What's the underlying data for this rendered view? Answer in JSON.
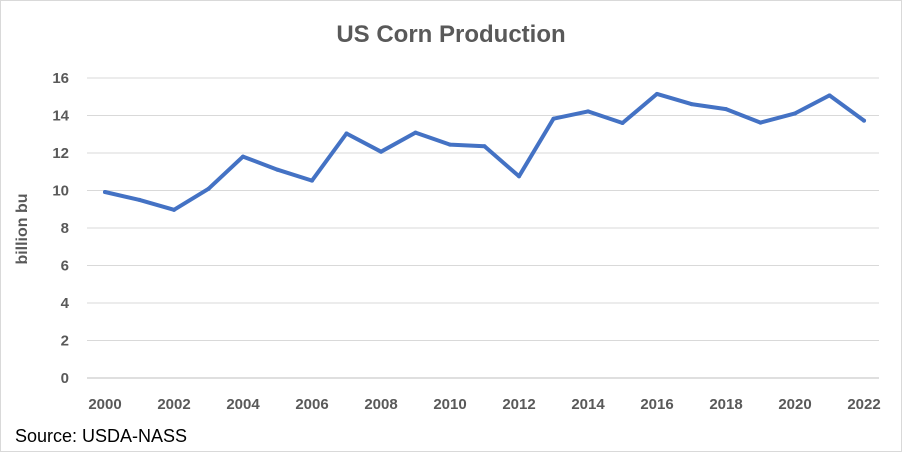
{
  "source": "Source: USDA-NASS",
  "chart_data": {
    "type": "line",
    "title": "US Corn Production",
    "xlabel": "",
    "ylabel": "billion bu",
    "xlim": [
      2000,
      2022
    ],
    "ylim": [
      0,
      16
    ],
    "x_ticks": [
      2000,
      2002,
      2004,
      2006,
      2008,
      2010,
      2012,
      2014,
      2016,
      2018,
      2020,
      2022
    ],
    "y_ticks": [
      0,
      2,
      4,
      6,
      8,
      10,
      12,
      14,
      16
    ],
    "grid": true,
    "legend": "none",
    "series": [
      {
        "color": "#4472c4",
        "x": [
          2000,
          2001,
          2002,
          2003,
          2004,
          2005,
          2006,
          2007,
          2008,
          2009,
          2010,
          2011,
          2012,
          2013,
          2014,
          2015,
          2016,
          2017,
          2018,
          2019,
          2020,
          2021,
          2022
        ],
        "values": [
          9.92,
          9.5,
          8.97,
          10.09,
          11.81,
          11.11,
          10.53,
          13.04,
          12.07,
          13.09,
          12.45,
          12.36,
          10.76,
          13.83,
          14.22,
          13.6,
          15.15,
          14.61,
          14.34,
          13.62,
          14.11,
          15.07,
          13.73
        ]
      }
    ]
  }
}
